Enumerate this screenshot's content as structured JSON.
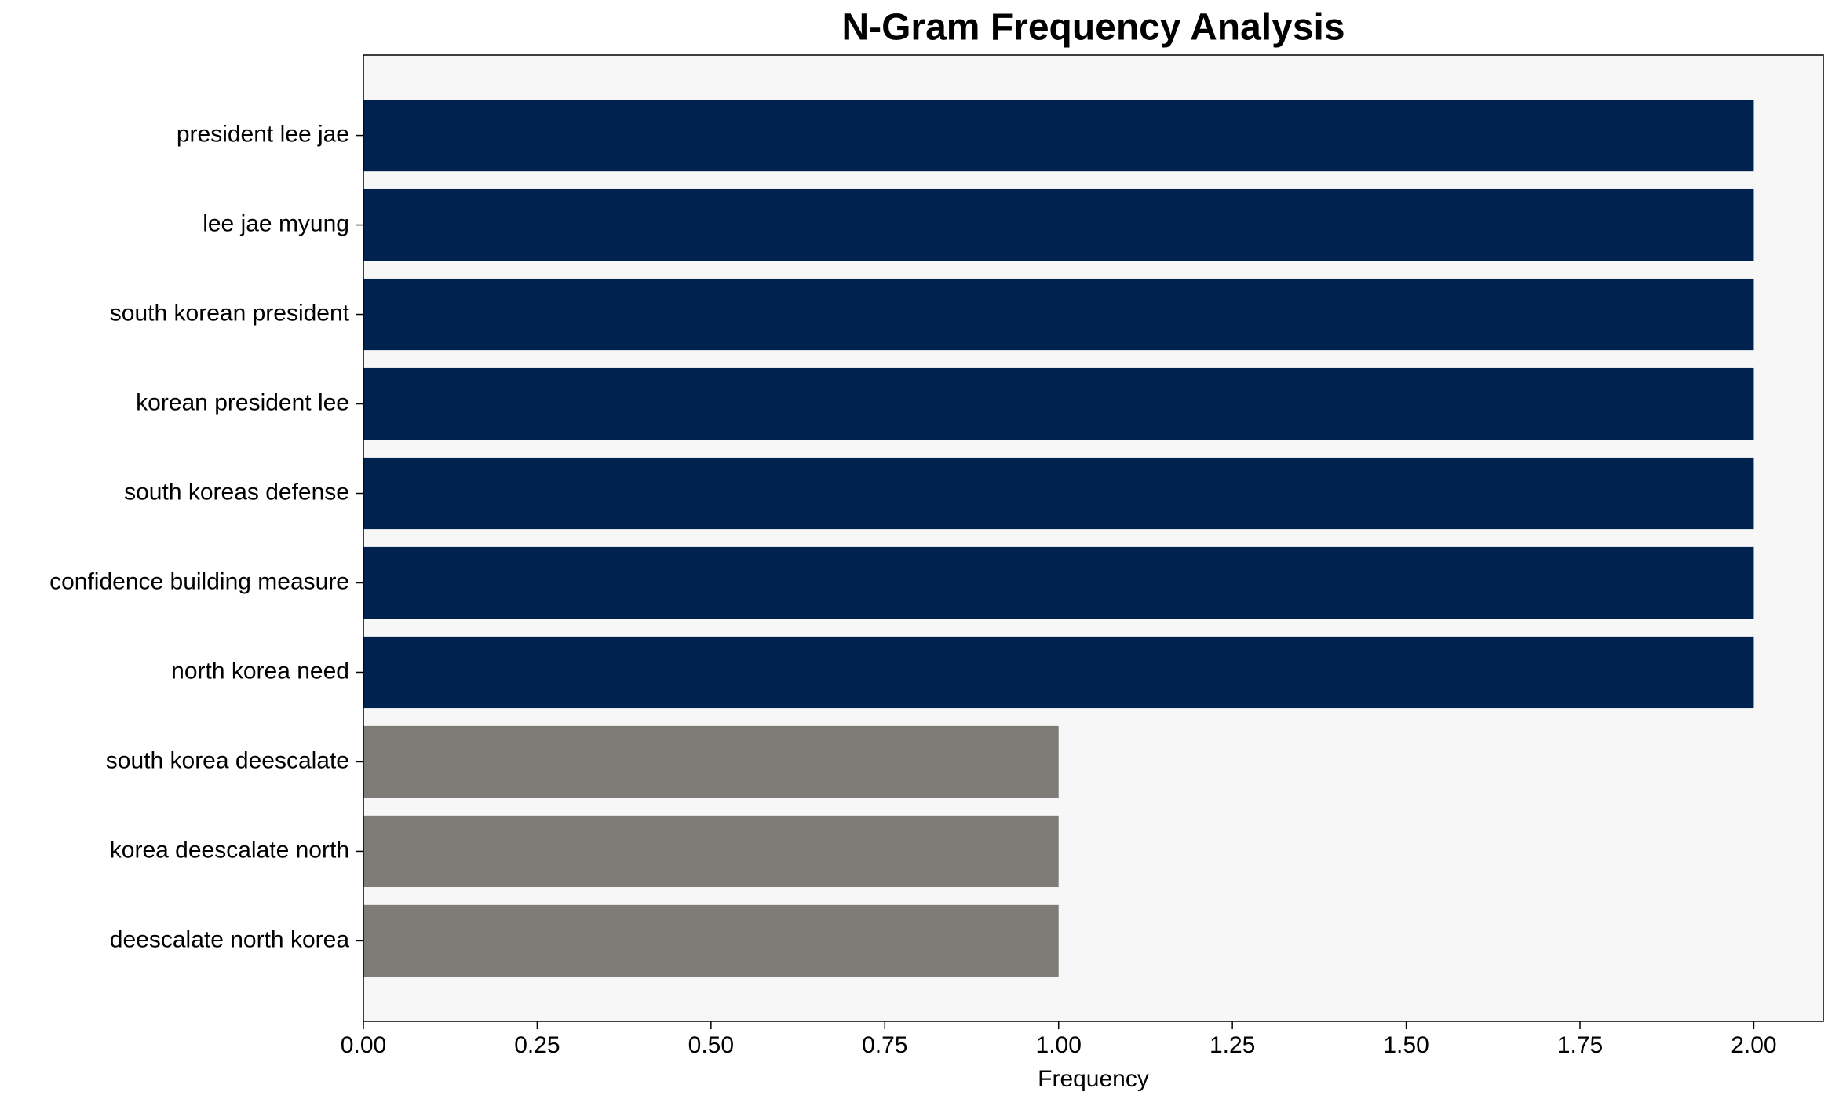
{
  "chart_data": {
    "type": "barh",
    "title": "N-Gram Frequency Analysis",
    "xlabel": "Frequency",
    "categories": [
      "president lee jae",
      "lee jae myung",
      "south korean president",
      "korean president lee",
      "south koreas defense",
      "confidence building measure",
      "north korea need",
      "south korea deescalate",
      "korea deescalate north",
      "deescalate north korea"
    ],
    "values": [
      2,
      2,
      2,
      2,
      2,
      2,
      2,
      1,
      1,
      1
    ],
    "colors": [
      "#00224e",
      "#00224e",
      "#00224e",
      "#00224e",
      "#00224e",
      "#00224e",
      "#00224e",
      "#7f7c78",
      "#7f7c78",
      "#7f7c78"
    ],
    "xlim": [
      0,
      2.1
    ],
    "xticks": [
      {
        "value": 0,
        "label": "0.00"
      },
      {
        "value": 0.25,
        "label": "0.25"
      },
      {
        "value": 0.5,
        "label": "0.50"
      },
      {
        "value": 0.75,
        "label": "0.75"
      },
      {
        "value": 1,
        "label": "1.00"
      },
      {
        "value": 1.25,
        "label": "1.25"
      },
      {
        "value": 1.5,
        "label": "1.50"
      },
      {
        "value": 1.75,
        "label": "1.75"
      },
      {
        "value": 2,
        "label": "2.00"
      }
    ],
    "grid": false
  }
}
